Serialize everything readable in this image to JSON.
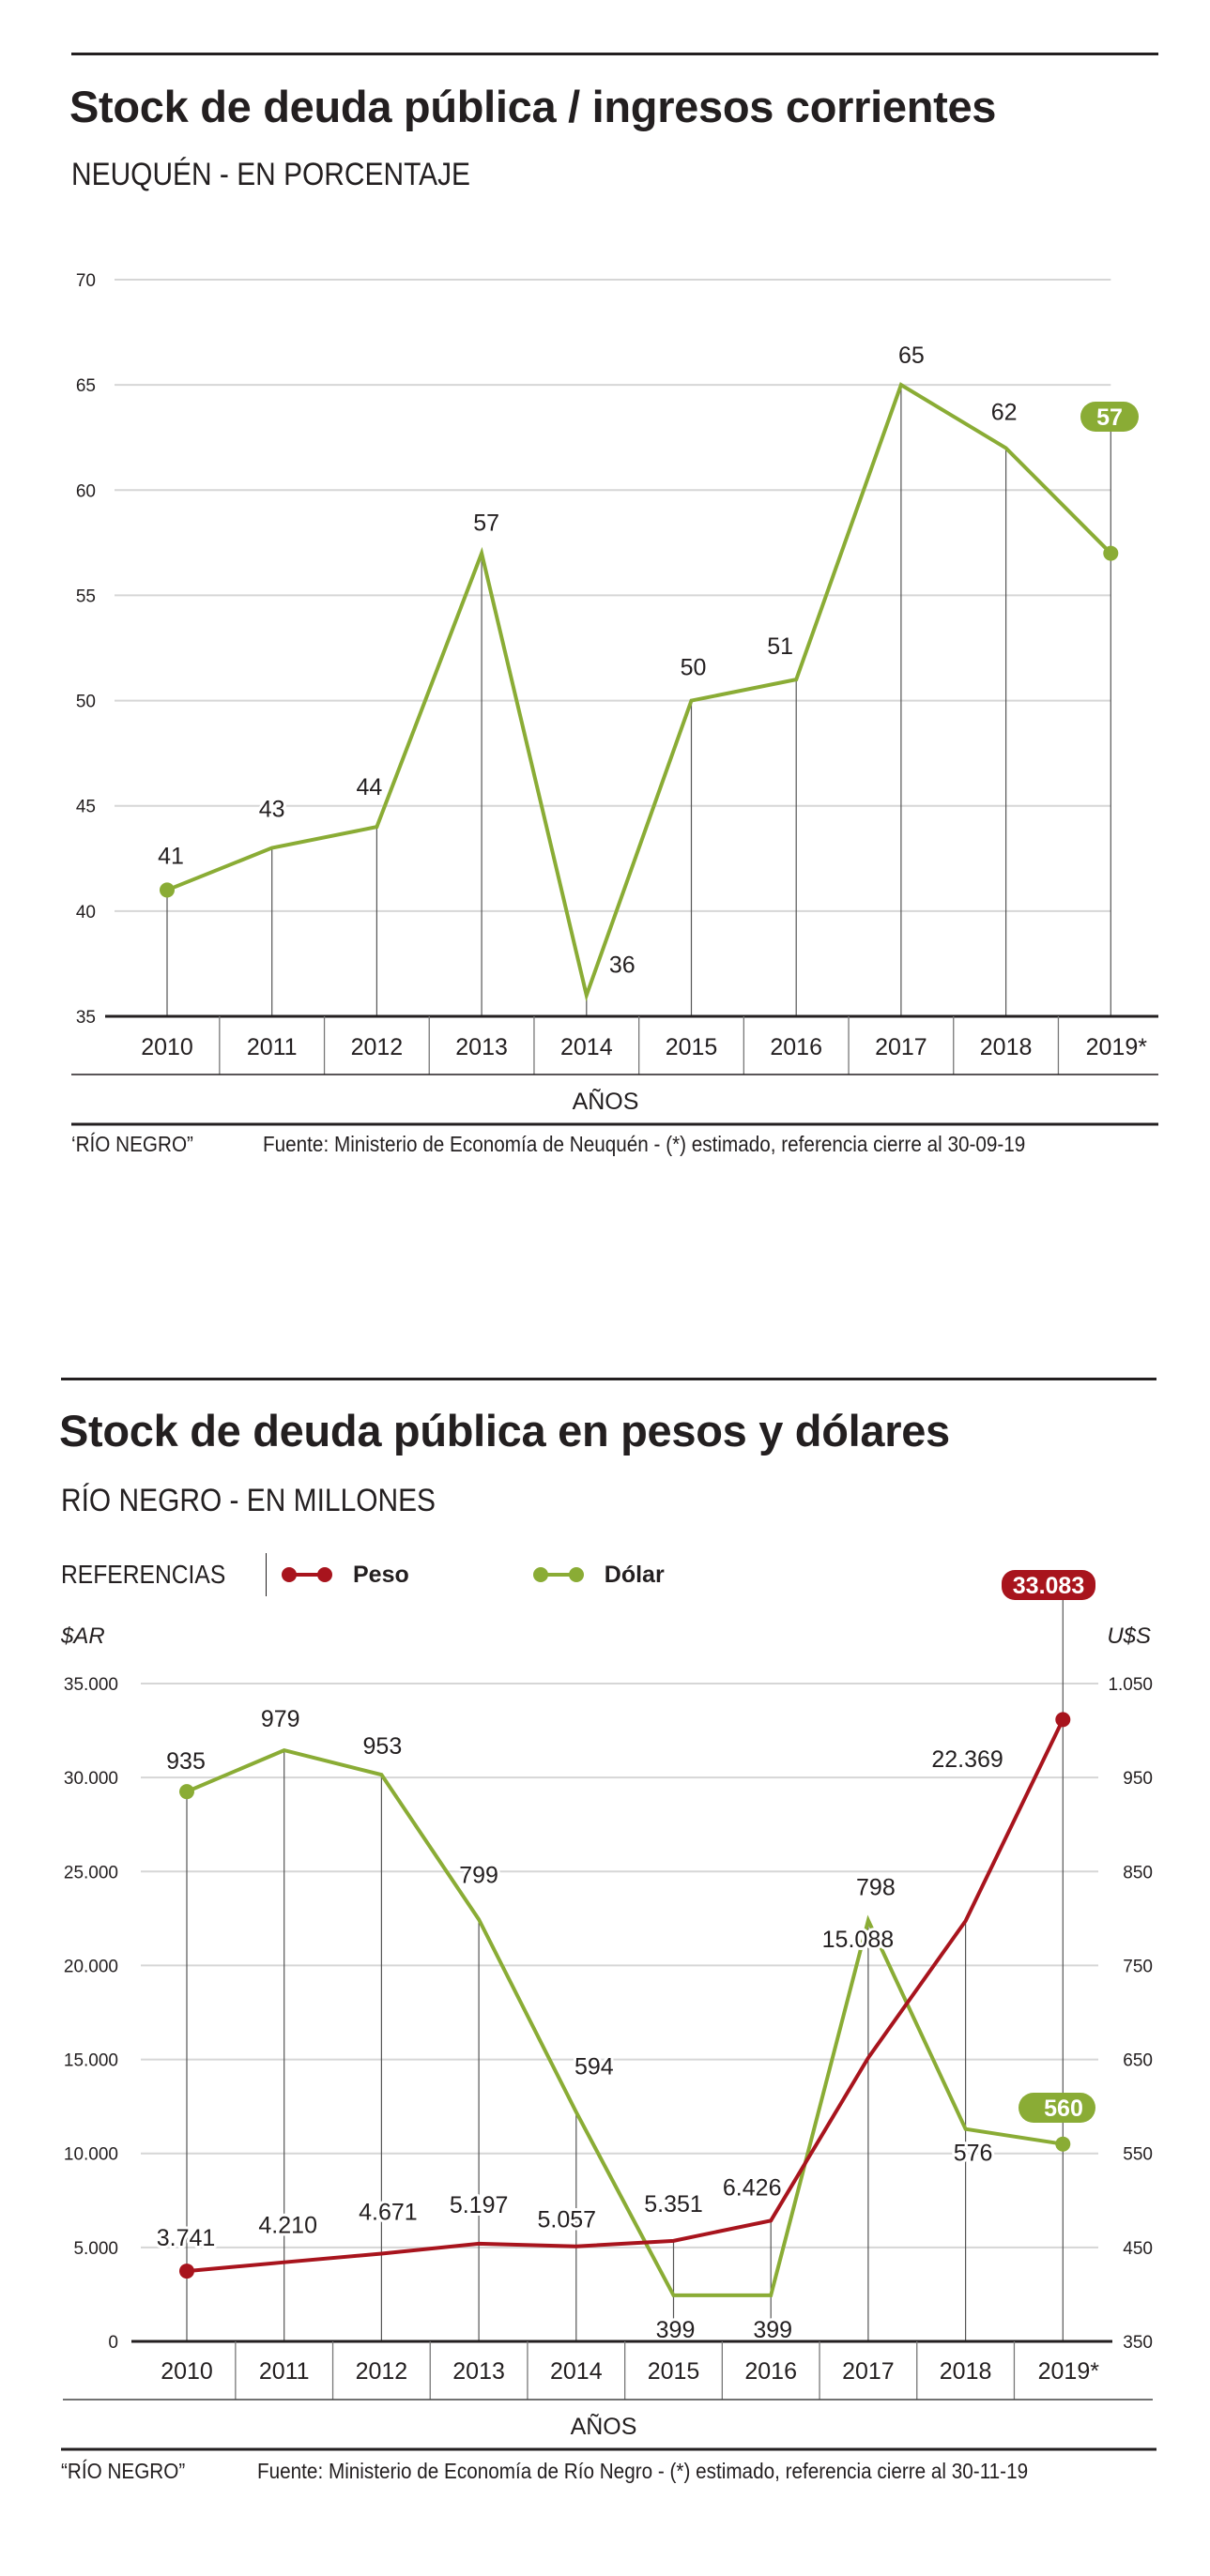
{
  "colors": {
    "green": "#8aac35",
    "red": "#a8141d",
    "ink": "#231f20",
    "grid": "#d6d6d6"
  },
  "chart_data": [
    {
      "type": "line",
      "title": "Stock de deuda pública / ingresos corrientes",
      "subtitle": "NEUQUÉN - EN PORCENTAJE",
      "xlabel": "AÑOS",
      "ylabel": "",
      "categories": [
        "2010",
        "2011",
        "2012",
        "2013",
        "2014",
        "2015",
        "2016",
        "2017",
        "2018",
        "2019*"
      ],
      "series": [
        {
          "name": "Stock de deuda / ingresos corrientes",
          "color": "#8aac35",
          "values": [
            41,
            43,
            44,
            57,
            36,
            50,
            51,
            65,
            62,
            57
          ],
          "labels": [
            "41",
            "43",
            "44",
            "57",
            "36",
            "50",
            "51",
            "65",
            "62",
            "57"
          ]
        }
      ],
      "ylim": [
        35,
        70
      ],
      "yticks": [
        35,
        40,
        45,
        50,
        55,
        60,
        65,
        70
      ],
      "ytick_labels": [
        "35",
        "40",
        "45",
        "50",
        "55",
        "60",
        "65",
        "70"
      ],
      "highlight": {
        "category": "2019*",
        "label": "57"
      },
      "grid": true,
      "footer_credit": "‘RÍO NEGRO”",
      "footer_source": "Fuente: Ministerio de Economía de Neuquén - (*) estimado, referencia cierre al 30-09-19"
    },
    {
      "type": "line",
      "title": "Stock de deuda pública en pesos y dólares",
      "subtitle": "RÍO NEGRO - EN MILLONES",
      "xlabel": "AÑOS",
      "legend_title": "REFERENCIAS",
      "legend_position": "top-left",
      "categories": [
        "2010",
        "2011",
        "2012",
        "2013",
        "2014",
        "2015",
        "2016",
        "2017",
        "2018",
        "2019*"
      ],
      "left_axis": {
        "label": "$AR",
        "ylim": [
          0,
          35000
        ],
        "ticks": [
          0,
          5000,
          10000,
          15000,
          20000,
          25000,
          30000,
          35000
        ],
        "tick_labels": [
          "0",
          "5.000",
          "10.000",
          "15.000",
          "20.000",
          "25.000",
          "30.000",
          "35.000"
        ]
      },
      "right_axis": {
        "label": "U$S",
        "ylim": [
          350,
          1050
        ],
        "ticks": [
          350,
          450,
          550,
          650,
          750,
          850,
          950,
          1050
        ],
        "tick_labels": [
          "350",
          "450",
          "550",
          "650",
          "750",
          "850",
          "950",
          "1.050"
        ]
      },
      "series": [
        {
          "name": "Peso",
          "axis": "left",
          "color": "#a8141d",
          "values": [
            3741,
            4210,
            4671,
            5197,
            5057,
            5351,
            6426,
            15088,
            22369,
            33083
          ],
          "labels": [
            "3.741",
            "4.210",
            "4.671",
            "5.197",
            "5.057",
            "5.351",
            "6.426",
            "15.088",
            "22.369",
            "33.083"
          ]
        },
        {
          "name": "Dólar",
          "axis": "right",
          "color": "#8aac35",
          "values": [
            935,
            979,
            953,
            799,
            594,
            399,
            399,
            798,
            576,
            560
          ],
          "labels": [
            "935",
            "979",
            "953",
            "799",
            "594",
            "399",
            "399",
            "798",
            "576",
            "560"
          ]
        }
      ],
      "grid": true,
      "footer_credit": "“RÍO NEGRO”",
      "footer_source": "Fuente: Ministerio de Economía de Río Negro - (*) estimado, referencia cierre al 30-11-19"
    }
  ]
}
